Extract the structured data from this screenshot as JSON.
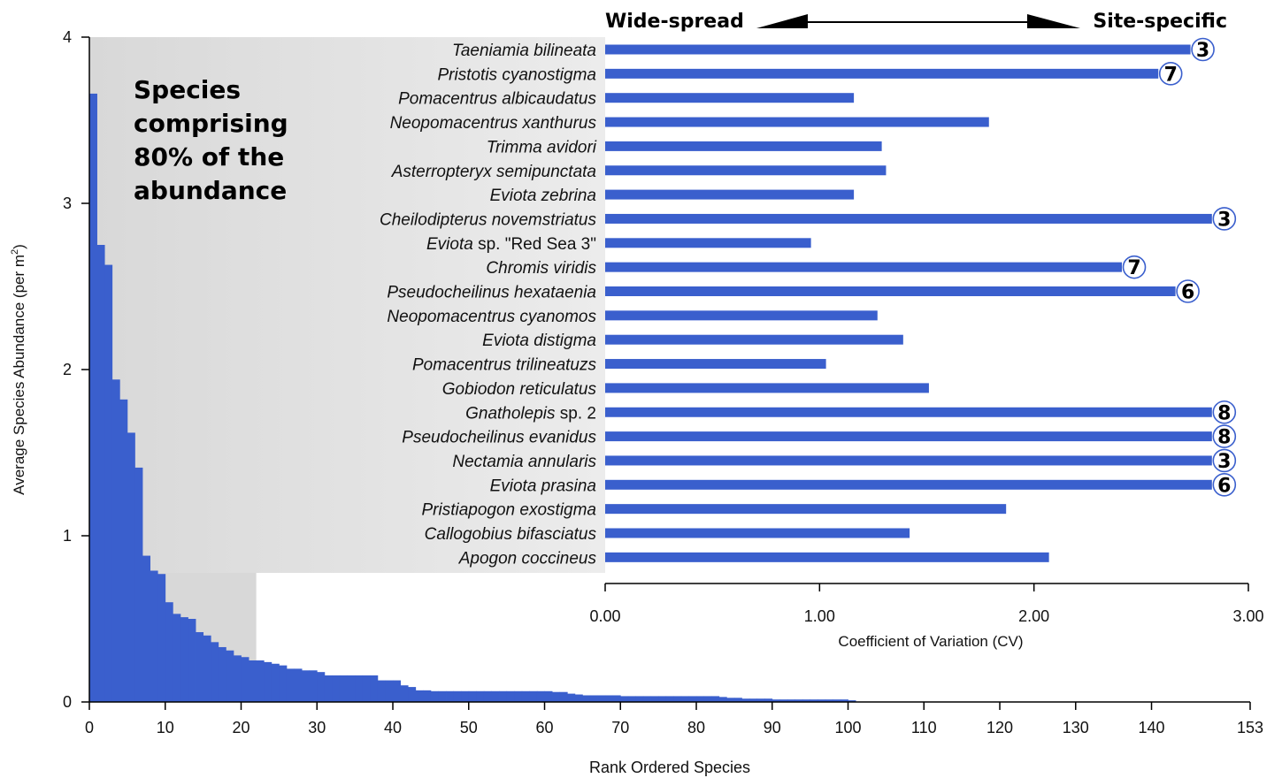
{
  "chart_data": [
    {
      "type": "bar",
      "xlabel": "Rank Ordered Species",
      "ylabel": "Average Species Abundance (per m",
      "ylabel_sup": "2",
      "ylabel_suffix": ")",
      "xlim": [
        0,
        153
      ],
      "ylim": [
        0,
        4
      ],
      "xticks": [
        "0",
        "10",
        "20",
        "30",
        "40",
        "50",
        "60",
        "70",
        "80",
        "90",
        "100",
        "110",
        "120",
        "130",
        "140",
        "153"
      ],
      "yticks": [
        "0",
        "1",
        "2",
        "3",
        "4"
      ],
      "annotation": [
        "Species",
        "comprising",
        "80% of the",
        "abundance"
      ],
      "highlight_top_n": 22,
      "bar_color": "#3a5fcd",
      "values": [
        3.66,
        2.75,
        2.63,
        1.94,
        1.82,
        1.62,
        1.41,
        0.88,
        0.79,
        0.77,
        0.6,
        0.53,
        0.51,
        0.5,
        0.42,
        0.4,
        0.36,
        0.33,
        0.31,
        0.28,
        0.27,
        0.25,
        0.25,
        0.24,
        0.23,
        0.22,
        0.2,
        0.2,
        0.19,
        0.19,
        0.18,
        0.16,
        0.16,
        0.16,
        0.16,
        0.16,
        0.16,
        0.16,
        0.13,
        0.13,
        0.13,
        0.1,
        0.09,
        0.07,
        0.07,
        0.065,
        0.065,
        0.065,
        0.065,
        0.065,
        0.065,
        0.065,
        0.065,
        0.065,
        0.065,
        0.065,
        0.065,
        0.065,
        0.065,
        0.065,
        0.065,
        0.06,
        0.06,
        0.05,
        0.045,
        0.04,
        0.04,
        0.04,
        0.04,
        0.04,
        0.035,
        0.035,
        0.035,
        0.035,
        0.035,
        0.035,
        0.035,
        0.035,
        0.035,
        0.035,
        0.035,
        0.035,
        0.035,
        0.03,
        0.025,
        0.025,
        0.02,
        0.02,
        0.02,
        0.02,
        0.015,
        0.015,
        0.015,
        0.015,
        0.015,
        0.015,
        0.015,
        0.015,
        0.015,
        0.015,
        0.01
      ]
    },
    {
      "type": "bar",
      "orientation": "horizontal",
      "xlabel": "Coefficient of Variation (CV)",
      "xlim": [
        0,
        3
      ],
      "xticks": [
        "0.00",
        "1.00",
        "2.00",
        "3.00"
      ],
      "scale_left": "Wide-spread",
      "scale_right": "Site-specific",
      "bar_color": "#3a5fcd",
      "categories": [
        [
          "Taeniamia bilineata",
          ""
        ],
        [
          "Pristotis cyanostigma",
          ""
        ],
        [
          "Pomacentrus albicaudatus",
          ""
        ],
        [
          "Neopomacentrus xanthurus",
          ""
        ],
        [
          "Trimma avidori",
          ""
        ],
        [
          "Asterropteryx semipunctata",
          ""
        ],
        [
          "Eviota zebrina",
          ""
        ],
        [
          "Cheilodipterus novemstriatus",
          ""
        ],
        [
          "Eviota",
          " sp. \"Red Sea 3\""
        ],
        [
          "Chromis viridis",
          ""
        ],
        [
          "Pseudocheilinus hexataenia",
          ""
        ],
        [
          "Neopomacentrus cyanomos",
          ""
        ],
        [
          "Eviota distigma",
          ""
        ],
        [
          "Pomacentrus trilineatuzs",
          ""
        ],
        [
          "Gobiodon reticulatus",
          ""
        ],
        [
          "Gnatholepis",
          " sp. 2"
        ],
        [
          "Pseudocheilinus evanidus",
          ""
        ],
        [
          "Nectamia annularis",
          ""
        ],
        [
          "Eviota prasina",
          ""
        ],
        [
          "Pristiapogon exostigma",
          ""
        ],
        [
          "Callogobius bifasciatus",
          ""
        ],
        [
          "Apogon coccineus",
          ""
        ]
      ],
      "values": [
        2.73,
        2.58,
        1.16,
        1.79,
        1.29,
        1.31,
        1.16,
        2.83,
        0.96,
        2.41,
        2.66,
        1.27,
        1.39,
        1.03,
        1.51,
        2.83,
        2.83,
        2.83,
        2.83,
        1.87,
        1.42,
        2.07
      ],
      "site_counts": [
        "3",
        "7",
        "",
        "",
        "",
        "",
        "",
        "3",
        "",
        "7",
        "6",
        "",
        "",
        "",
        "",
        "8",
        "8",
        "3",
        "6",
        "",
        "",
        ""
      ]
    }
  ]
}
